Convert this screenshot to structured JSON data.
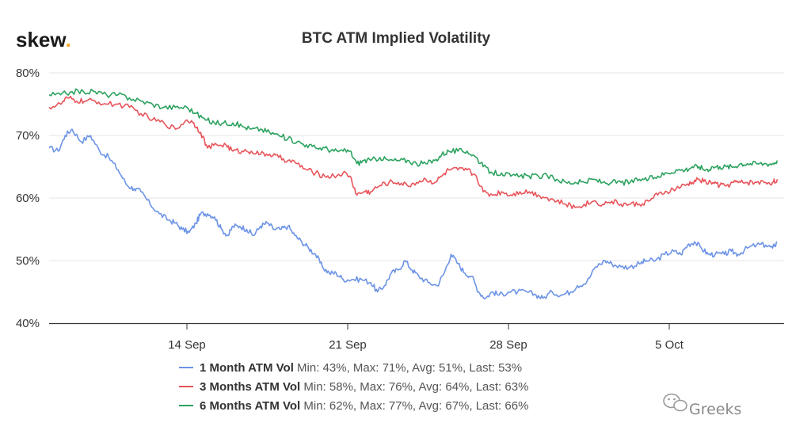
{
  "brand": {
    "name": "skew",
    "dot": ".",
    "dot_color": "#f5a623"
  },
  "watermark": {
    "text": "Greeks",
    "icon": "wechat-icon"
  },
  "chart_data": {
    "type": "line",
    "title": "BTC ATM Implied Volatility",
    "ylim": [
      40,
      80
    ],
    "yticks": [
      40,
      50,
      60,
      70,
      80
    ],
    "ytick_labels": [
      "40%",
      "50%",
      "60%",
      "70%",
      "80%"
    ],
    "xlim": [
      0,
      32
    ],
    "xticks": [
      {
        "x": 6,
        "label": "14 Sep"
      },
      {
        "x": 13,
        "label": "21 Sep"
      },
      {
        "x": 20,
        "label": "28 Sep"
      },
      {
        "x": 27,
        "label": "5 Oct"
      }
    ],
    "grid": true,
    "series": [
      {
        "name": "1 Month ATM Vol",
        "color": "#6c93e6",
        "stats": "Min: 43%, Max: 71%, Avg: 51%, Last: 53%",
        "points": [
          [
            0,
            68
          ],
          [
            0.4,
            67.5
          ],
          [
            0.7,
            70
          ],
          [
            1,
            71
          ],
          [
            1.4,
            69
          ],
          [
            1.8,
            70
          ],
          [
            2.2,
            67.5
          ],
          [
            2.6,
            66.5
          ],
          [
            3,
            64.5
          ],
          [
            3.4,
            62
          ],
          [
            3.7,
            61.5
          ],
          [
            4,
            61
          ],
          [
            4.4,
            59
          ],
          [
            4.8,
            57.5
          ],
          [
            5.2,
            56.5
          ],
          [
            5.5,
            56
          ],
          [
            5.8,
            55
          ],
          [
            6.1,
            54.5
          ],
          [
            6.4,
            56
          ],
          [
            6.6,
            57.5
          ],
          [
            6.9,
            57.5
          ],
          [
            7.2,
            57
          ],
          [
            7.5,
            55
          ],
          [
            7.8,
            54
          ],
          [
            8,
            55.5
          ],
          [
            8.3,
            55.5
          ],
          [
            8.6,
            55
          ],
          [
            8.9,
            54
          ],
          [
            9.2,
            55.5
          ],
          [
            9.5,
            56
          ],
          [
            9.8,
            55
          ],
          [
            10.1,
            55
          ],
          [
            10.4,
            55.5
          ],
          [
            10.7,
            54
          ],
          [
            11,
            53
          ],
          [
            11.3,
            52
          ],
          [
            11.6,
            51
          ],
          [
            11.9,
            49
          ],
          [
            12.2,
            48
          ],
          [
            12.5,
            48
          ],
          [
            12.8,
            47
          ],
          [
            13.2,
            47
          ],
          [
            13.6,
            47
          ],
          [
            14,
            46.5
          ],
          [
            14.3,
            45
          ],
          [
            14.6,
            46
          ],
          [
            14.9,
            48
          ],
          [
            15.2,
            48.5
          ],
          [
            15.5,
            50
          ],
          [
            15.8,
            48.5
          ],
          [
            16.1,
            47.5
          ],
          [
            16.5,
            46.5
          ],
          [
            16.9,
            46
          ],
          [
            17.2,
            48
          ],
          [
            17.5,
            51
          ],
          [
            17.8,
            49.5
          ],
          [
            18.1,
            48
          ],
          [
            18.4,
            47.5
          ],
          [
            18.7,
            45
          ],
          [
            19,
            44
          ],
          [
            19.3,
            45
          ],
          [
            19.6,
            44.5
          ],
          [
            20,
            45
          ],
          [
            20.4,
            45
          ],
          [
            20.8,
            45
          ],
          [
            21.2,
            44.5
          ],
          [
            21.5,
            44
          ],
          [
            21.9,
            45
          ],
          [
            22.3,
            44.5
          ],
          [
            22.7,
            45
          ],
          [
            23,
            46
          ],
          [
            23.4,
            46.5
          ],
          [
            23.8,
            49
          ],
          [
            24.2,
            50
          ],
          [
            24.5,
            49.5
          ],
          [
            24.9,
            49
          ],
          [
            25.3,
            49
          ],
          [
            25.7,
            49.5
          ],
          [
            26,
            50
          ],
          [
            26.4,
            50
          ],
          [
            26.8,
            51
          ],
          [
            27.2,
            51.5
          ],
          [
            27.5,
            51
          ],
          [
            27.8,
            52.5
          ],
          [
            28.1,
            53
          ],
          [
            28.4,
            52
          ],
          [
            28.7,
            51
          ],
          [
            29,
            51
          ],
          [
            29.4,
            51
          ],
          [
            29.7,
            51.5
          ],
          [
            30,
            51
          ],
          [
            30.4,
            52
          ],
          [
            30.8,
            52.5
          ],
          [
            31.2,
            52.5
          ],
          [
            31.5,
            52
          ],
          [
            31.7,
            53
          ]
        ]
      },
      {
        "name": "3 Months ATM Vol",
        "color": "#e8545a",
        "stats": "Min: 58%, Max: 76%, Avg: 64%, Last: 63%",
        "points": [
          [
            0,
            74.5
          ],
          [
            0.5,
            75
          ],
          [
            0.8,
            76
          ],
          [
            1.2,
            75.5
          ],
          [
            1.6,
            75.5
          ],
          [
            2,
            75.5
          ],
          [
            2.5,
            75
          ],
          [
            3,
            75
          ],
          [
            3.5,
            74.5
          ],
          [
            4,
            73.5
          ],
          [
            4.5,
            72.5
          ],
          [
            5,
            72
          ],
          [
            5.5,
            71
          ],
          [
            6,
            72.5
          ],
          [
            6.3,
            72
          ],
          [
            6.6,
            70.5
          ],
          [
            6.9,
            68
          ],
          [
            7.3,
            68.5
          ],
          [
            7.7,
            68.5
          ],
          [
            8,
            67.5
          ],
          [
            8.4,
            67.5
          ],
          [
            8.8,
            67.5
          ],
          [
            9.2,
            67
          ],
          [
            9.6,
            67
          ],
          [
            10,
            66.5
          ],
          [
            10.4,
            66
          ],
          [
            10.8,
            65.5
          ],
          [
            11.2,
            64.5
          ],
          [
            11.6,
            64
          ],
          [
            12,
            63.5
          ],
          [
            12.4,
            63.5
          ],
          [
            12.8,
            64
          ],
          [
            13.1,
            63.5
          ],
          [
            13.4,
            60.5
          ],
          [
            13.7,
            61
          ],
          [
            14,
            61
          ],
          [
            14.4,
            62
          ],
          [
            14.8,
            62.5
          ],
          [
            15.2,
            62.5
          ],
          [
            15.6,
            62
          ],
          [
            16,
            62.5
          ],
          [
            16.4,
            63
          ],
          [
            16.8,
            62.5
          ],
          [
            17.1,
            63.5
          ],
          [
            17.4,
            64.5
          ],
          [
            17.8,
            64.5
          ],
          [
            18.2,
            64.5
          ],
          [
            18.6,
            63.5
          ],
          [
            18.9,
            61
          ],
          [
            19.3,
            60.5
          ],
          [
            19.7,
            61
          ],
          [
            20.1,
            60.5
          ],
          [
            20.5,
            61
          ],
          [
            20.9,
            61
          ],
          [
            21.3,
            60.5
          ],
          [
            21.7,
            60
          ],
          [
            22.1,
            59.5
          ],
          [
            22.5,
            59
          ],
          [
            22.9,
            58.5
          ],
          [
            23.3,
            59
          ],
          [
            23.7,
            59.5
          ],
          [
            24.1,
            59
          ],
          [
            24.5,
            59.5
          ],
          [
            24.9,
            59
          ],
          [
            25.3,
            59
          ],
          [
            25.7,
            59
          ],
          [
            26.1,
            59.5
          ],
          [
            26.5,
            60.5
          ],
          [
            26.9,
            61
          ],
          [
            27.3,
            61.5
          ],
          [
            27.7,
            62
          ],
          [
            28,
            62.5
          ],
          [
            28.3,
            63
          ],
          [
            28.6,
            62.5
          ],
          [
            28.9,
            62.5
          ],
          [
            29.2,
            62
          ],
          [
            29.5,
            62
          ],
          [
            29.8,
            62.5
          ],
          [
            30.1,
            62.5
          ],
          [
            30.4,
            62.5
          ],
          [
            30.8,
            62.5
          ],
          [
            31.2,
            62.5
          ],
          [
            31.5,
            62.5
          ],
          [
            31.7,
            63
          ]
        ]
      },
      {
        "name": "6 Months ATM Vol",
        "color": "#2ca25f",
        "stats": "Min: 62%, Max: 77%, Avg: 67%, Last: 66%",
        "points": [
          [
            0,
            76.5
          ],
          [
            0.5,
            76.5
          ],
          [
            1,
            77
          ],
          [
            1.5,
            77
          ],
          [
            2,
            77
          ],
          [
            2.5,
            76.5
          ],
          [
            3,
            76.5
          ],
          [
            3.5,
            76
          ],
          [
            4,
            75.5
          ],
          [
            4.5,
            75
          ],
          [
            5,
            74.5
          ],
          [
            5.5,
            74.5
          ],
          [
            6,
            74.5
          ],
          [
            6.4,
            73.5
          ],
          [
            6.8,
            72.5
          ],
          [
            7.2,
            72
          ],
          [
            7.6,
            72
          ],
          [
            8,
            72
          ],
          [
            8.4,
            71.5
          ],
          [
            8.8,
            71
          ],
          [
            9.2,
            71
          ],
          [
            9.6,
            70.5
          ],
          [
            10,
            70
          ],
          [
            10.4,
            69.5
          ],
          [
            10.8,
            69
          ],
          [
            11.2,
            68.5
          ],
          [
            11.6,
            68
          ],
          [
            12,
            68
          ],
          [
            12.4,
            67.5
          ],
          [
            12.8,
            67.5
          ],
          [
            13.1,
            67.5
          ],
          [
            13.4,
            65.5
          ],
          [
            13.7,
            66
          ],
          [
            14,
            66
          ],
          [
            14.4,
            66.5
          ],
          [
            14.8,
            66
          ],
          [
            15.2,
            66
          ],
          [
            15.6,
            66
          ],
          [
            16,
            65.5
          ],
          [
            16.4,
            65.5
          ],
          [
            16.8,
            66
          ],
          [
            17.1,
            67
          ],
          [
            17.4,
            67.5
          ],
          [
            17.8,
            67.5
          ],
          [
            18.2,
            67.5
          ],
          [
            18.6,
            66.5
          ],
          [
            18.9,
            65
          ],
          [
            19.3,
            64
          ],
          [
            19.7,
            64
          ],
          [
            20.1,
            63.5
          ],
          [
            20.5,
            63.5
          ],
          [
            20.9,
            63.5
          ],
          [
            21.3,
            63.5
          ],
          [
            21.7,
            63.5
          ],
          [
            22.1,
            63
          ],
          [
            22.5,
            62.5
          ],
          [
            22.9,
            62.5
          ],
          [
            23.3,
            62.5
          ],
          [
            23.7,
            63
          ],
          [
            24.1,
            62.5
          ],
          [
            24.5,
            62.5
          ],
          [
            24.9,
            62.5
          ],
          [
            25.3,
            62.5
          ],
          [
            25.7,
            63
          ],
          [
            26.1,
            63
          ],
          [
            26.5,
            63.5
          ],
          [
            26.9,
            64
          ],
          [
            27.3,
            64.5
          ],
          [
            27.7,
            64.5
          ],
          [
            28,
            65
          ],
          [
            28.3,
            65
          ],
          [
            28.6,
            64.5
          ],
          [
            28.9,
            65
          ],
          [
            29.2,
            65
          ],
          [
            29.5,
            65
          ],
          [
            29.8,
            65
          ],
          [
            30.1,
            65.5
          ],
          [
            30.4,
            65.5
          ],
          [
            30.8,
            65.5
          ],
          [
            31.2,
            65.5
          ],
          [
            31.5,
            65.5
          ],
          [
            31.7,
            66
          ]
        ]
      }
    ]
  }
}
